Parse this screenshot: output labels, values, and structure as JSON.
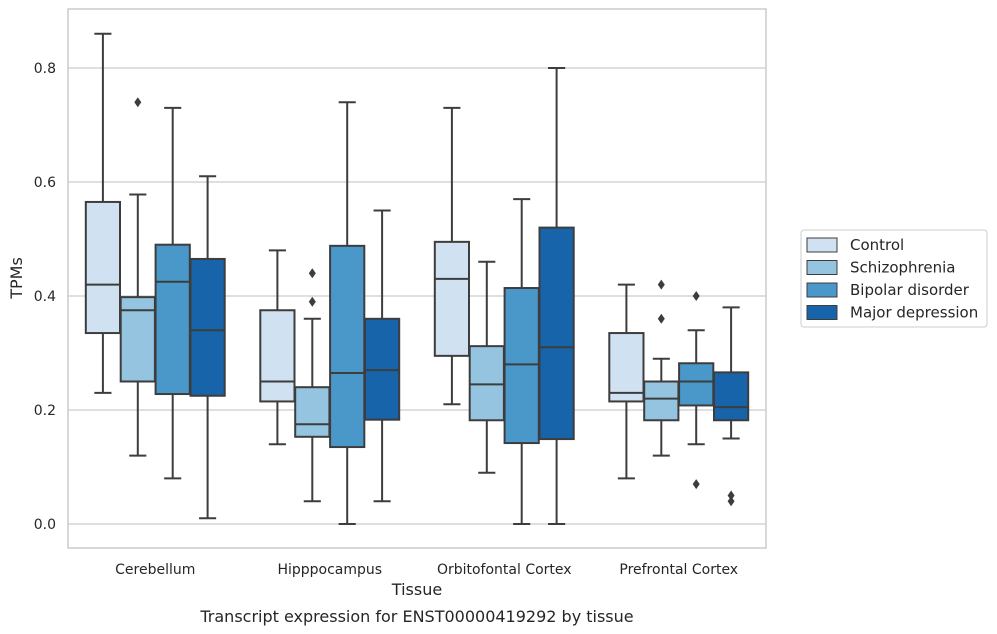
{
  "chart_data": {
    "type": "box",
    "xlabel": "Tissue",
    "ylabel": "TPMs",
    "caption": "Transcript expression for ENST00000419292 by tissue",
    "ylim": [
      -0.04,
      0.905
    ],
    "yticks": [
      "0.0",
      "0.2",
      "0.4",
      "0.6",
      "0.8"
    ],
    "ytick_values": [
      0.0,
      0.2,
      0.4,
      0.6,
      0.8
    ],
    "grid": true,
    "legend_position": "right",
    "categories": [
      "Cerebellum",
      "Hipppocampus",
      "Orbitofontal Cortex",
      "Prefrontal Cortex"
    ],
    "series": [
      {
        "name": "Control",
        "color": "#d0e1f2",
        "boxes": [
          {
            "whisker_low": 0.23,
            "q1": 0.335,
            "median": 0.42,
            "q3": 0.565,
            "whisker_high": 0.86,
            "outliers": []
          },
          {
            "whisker_low": 0.14,
            "q1": 0.215,
            "median": 0.25,
            "q3": 0.375,
            "whisker_high": 0.48,
            "outliers": []
          },
          {
            "whisker_low": 0.21,
            "q1": 0.295,
            "median": 0.43,
            "q3": 0.495,
            "whisker_high": 0.73,
            "outliers": []
          },
          {
            "whisker_low": 0.08,
            "q1": 0.215,
            "median": 0.23,
            "q3": 0.335,
            "whisker_high": 0.42,
            "outliers": []
          }
        ]
      },
      {
        "name": "Schizophrenia",
        "color": "#94c4df",
        "boxes": [
          {
            "whisker_low": 0.12,
            "q1": 0.25,
            "median": 0.375,
            "q3": 0.398,
            "whisker_high": 0.578,
            "outliers": [
              0.74
            ]
          },
          {
            "whisker_low": 0.04,
            "q1": 0.153,
            "median": 0.175,
            "q3": 0.24,
            "whisker_high": 0.36,
            "outliers": [
              0.39,
              0.44
            ]
          },
          {
            "whisker_low": 0.09,
            "q1": 0.182,
            "median": 0.245,
            "q3": 0.312,
            "whisker_high": 0.46,
            "outliers": []
          },
          {
            "whisker_low": 0.12,
            "q1": 0.182,
            "median": 0.22,
            "q3": 0.25,
            "whisker_high": 0.29,
            "outliers": [
              0.36,
              0.42
            ]
          }
        ]
      },
      {
        "name": "Bipolar disorder",
        "color": "#4a98c9",
        "boxes": [
          {
            "whisker_low": 0.08,
            "q1": 0.228,
            "median": 0.425,
            "q3": 0.49,
            "whisker_high": 0.73,
            "outliers": []
          },
          {
            "whisker_low": 0.0,
            "q1": 0.135,
            "median": 0.265,
            "q3": 0.488,
            "whisker_high": 0.74,
            "outliers": []
          },
          {
            "whisker_low": 0.0,
            "q1": 0.142,
            "median": 0.28,
            "q3": 0.414,
            "whisker_high": 0.57,
            "outliers": []
          },
          {
            "whisker_low": 0.14,
            "q1": 0.208,
            "median": 0.25,
            "q3": 0.282,
            "whisker_high": 0.34,
            "outliers": [
              0.07,
              0.4
            ]
          }
        ]
      },
      {
        "name": "Major depression",
        "color": "#1764ab",
        "boxes": [
          {
            "whisker_low": 0.01,
            "q1": 0.225,
            "median": 0.34,
            "q3": 0.465,
            "whisker_high": 0.61,
            "outliers": []
          },
          {
            "whisker_low": 0.04,
            "q1": 0.183,
            "median": 0.27,
            "q3": 0.36,
            "whisker_high": 0.55,
            "outliers": []
          },
          {
            "whisker_low": 0.0,
            "q1": 0.149,
            "median": 0.31,
            "q3": 0.52,
            "whisker_high": 0.8,
            "outliers": []
          },
          {
            "whisker_low": 0.15,
            "q1": 0.182,
            "median": 0.205,
            "q3": 0.266,
            "whisker_high": 0.38,
            "outliers": [
              0.04,
              0.05
            ]
          }
        ]
      }
    ]
  }
}
